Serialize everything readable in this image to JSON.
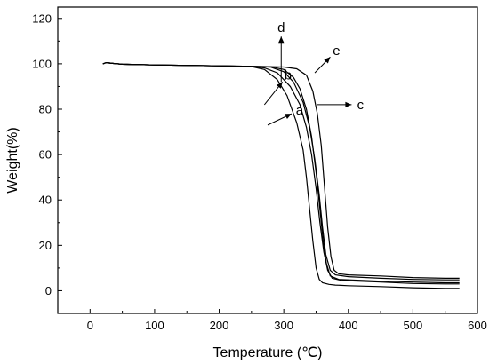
{
  "chart_data": {
    "type": "line",
    "xlabel": "Temperature (℃)",
    "ylabel": "Weight(%)",
    "xlim": [
      -50,
      600
    ],
    "ylim": [
      -10,
      125
    ],
    "xticks": [
      0,
      100,
      200,
      300,
      400,
      500,
      600
    ],
    "yticks": [
      0,
      20,
      40,
      60,
      80,
      100,
      120
    ],
    "grid": false,
    "series": [
      {
        "name": "a",
        "x": [
          20,
          25,
          35,
          50,
          100,
          200,
          250,
          270,
          290,
          305,
          320,
          330,
          335,
          340,
          345,
          350,
          355,
          360,
          370,
          380,
          400,
          450,
          500,
          550,
          572
        ],
        "y": [
          100,
          100.5,
          100.2,
          99.8,
          99.5,
          99.1,
          98.8,
          97.5,
          93,
          86,
          74,
          62,
          50,
          36,
          22,
          10,
          5,
          3.5,
          2.8,
          2.5,
          2.2,
          1.8,
          1.3,
          1.0,
          1.0
        ]
      },
      {
        "name": "b",
        "x": [
          20,
          25,
          35,
          50,
          100,
          200,
          250,
          270,
          290,
          310,
          325,
          335,
          343,
          350,
          356,
          362,
          368,
          375,
          390,
          450,
          500,
          550,
          572
        ],
        "y": [
          100,
          100.5,
          100.2,
          99.8,
          99.5,
          99.1,
          98.8,
          98.2,
          96,
          90,
          82,
          72,
          60,
          45,
          30,
          17,
          9,
          5.5,
          4.5,
          3.8,
          3.2,
          3.0,
          3.0
        ]
      },
      {
        "name": "c",
        "x": [
          20,
          25,
          35,
          50,
          100,
          200,
          250,
          280,
          300,
          315,
          330,
          340,
          348,
          355,
          360,
          365,
          372,
          380,
          400,
          450,
          500,
          550,
          572
        ],
        "y": [
          100,
          100.5,
          100.2,
          99.8,
          99.5,
          99.1,
          98.9,
          98.5,
          96.5,
          92,
          83,
          72,
          58,
          42,
          28,
          16,
          9,
          7,
          6.2,
          5.5,
          5.0,
          4.8,
          4.8
        ]
      },
      {
        "name": "d",
        "x": [
          20,
          25,
          35,
          50,
          100,
          200,
          250,
          280,
          300,
          315,
          325,
          335,
          343,
          350,
          356,
          361,
          366,
          372,
          385,
          450,
          500,
          550,
          572
        ],
        "y": [
          100,
          100.5,
          100.2,
          99.8,
          99.5,
          99.1,
          98.9,
          98.7,
          97.5,
          94,
          89,
          80,
          68,
          52,
          36,
          22,
          12,
          6.5,
          5.0,
          4.2,
          3.8,
          3.5,
          3.5
        ]
      },
      {
        "name": "e",
        "x": [
          20,
          25,
          35,
          50,
          100,
          200,
          250,
          300,
          320,
          335,
          345,
          352,
          358,
          363,
          368,
          373,
          378,
          385,
          400,
          450,
          500,
          550,
          572
        ],
        "y": [
          100,
          100.5,
          100.2,
          99.8,
          99.5,
          99.1,
          98.9,
          98.6,
          97.8,
          95,
          88,
          78,
          64,
          46,
          28,
          15,
          9,
          7.5,
          7.0,
          6.5,
          5.8,
          5.5,
          5.5
        ]
      }
    ],
    "annotations": [
      {
        "label": "a",
        "arrow_from": [
          275,
          73
        ],
        "arrow_to": [
          312,
          78
        ]
      },
      {
        "label": "b",
        "arrow_from": [
          270,
          82
        ],
        "arrow_to": [
          298,
          92
        ]
      },
      {
        "label": "c",
        "arrow_from": [
          352,
          82
        ],
        "arrow_to": [
          405,
          82
        ]
      },
      {
        "label": "d",
        "arrow_from": [
          296,
          92
        ],
        "arrow_to": [
          296,
          112
        ]
      },
      {
        "label": "e",
        "arrow_from": [
          348,
          96
        ],
        "arrow_to": [
          372,
          103
        ]
      }
    ],
    "legend": "none"
  }
}
